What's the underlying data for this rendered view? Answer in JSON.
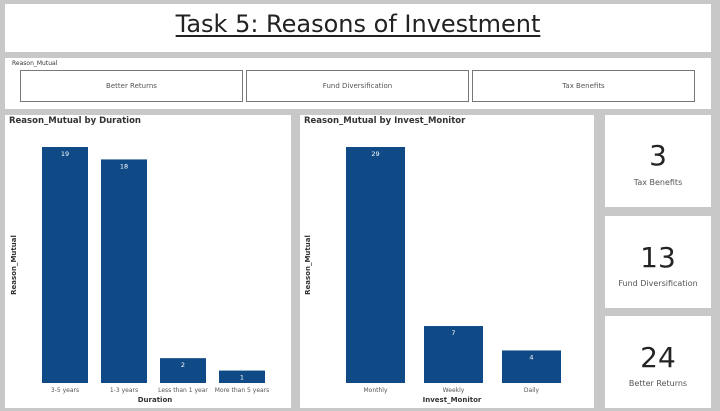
{
  "title": "Task 5: Reasons of Investment",
  "slicer": {
    "label": "Reason_Mutual",
    "options": [
      "Better Returns",
      "Fund Diversification",
      "Tax Benefits"
    ]
  },
  "colors": {
    "bar": "#0f4a86",
    "bar_label": "#ffffff"
  },
  "cards": [
    {
      "value": "3",
      "label": "Tax Benefits"
    },
    {
      "value": "13",
      "label": "Fund Diversification"
    },
    {
      "value": "24",
      "label": "Better Returns"
    }
  ],
  "chart_data": [
    {
      "type": "bar",
      "title": "Reason_Mutual by Duration",
      "xlabel": "Duration",
      "ylabel": "Reason_Mutual",
      "categories": [
        "3-5 years",
        "1-3 years",
        "Less than 1 year",
        "More than 5 years"
      ],
      "values": [
        19,
        18,
        2,
        1
      ],
      "ylim": [
        0,
        19
      ]
    },
    {
      "type": "bar",
      "title": "Reason_Mutual by Invest_Monitor",
      "xlabel": "Invest_Monitor",
      "ylabel": "Reason_Mutual",
      "categories": [
        "Monthly",
        "Weekly",
        "Daily"
      ],
      "values": [
        29,
        7,
        4
      ],
      "ylim": [
        0,
        29
      ]
    }
  ]
}
